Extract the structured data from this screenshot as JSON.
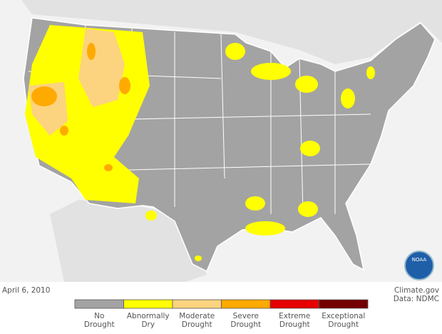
{
  "map": {
    "title_logo": "NOAA"
  },
  "footer": {
    "date": "April 6, 2010",
    "credit": "Climate.gov",
    "source": "Data: NDMC"
  },
  "legend": {
    "items": [
      {
        "lines": [
          "No",
          "Drought"
        ],
        "color": "#a3a3a3"
      },
      {
        "lines": [
          "Abnormally",
          "Dry"
        ],
        "color": "#ffff00"
      },
      {
        "lines": [
          "Moderate",
          "Drought"
        ],
        "color": "#fcd37f"
      },
      {
        "lines": [
          "Severe",
          "Drought"
        ],
        "color": "#ffaa00"
      },
      {
        "lines": [
          "Extreme",
          "Drought"
        ],
        "color": "#e60000"
      },
      {
        "lines": [
          "Exceptional",
          "Drought"
        ],
        "color": "#730000"
      }
    ]
  }
}
